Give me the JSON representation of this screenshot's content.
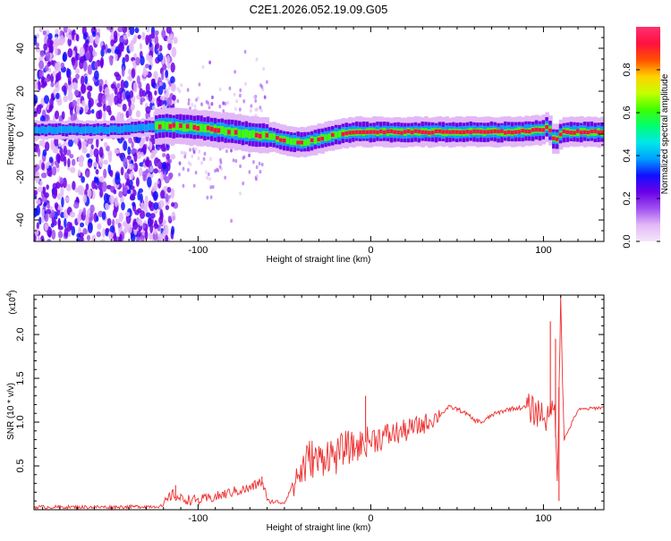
{
  "title": "C2E1.2026.052.19.09.G05",
  "chart_data": [
    {
      "type": "heatmap",
      "xlabel": "Height of straight line (km)",
      "ylabel": "Frequency (Hz)",
      "xlim": [
        -195,
        135
      ],
      "ylim": [
        -50,
        50
      ],
      "xticks": [
        -100,
        0,
        100
      ],
      "xtick_labels": [
        "-100",
        "0",
        "100"
      ],
      "yticks": [
        -40,
        -20,
        0,
        20,
        40
      ],
      "ytick_labels": [
        "-40",
        "-20",
        "0",
        "20",
        "40"
      ],
      "ridge": {
        "x": [
          -195,
          -150,
          -120,
          -100,
          -80,
          -60,
          -50,
          -40,
          -30,
          -20,
          -10,
          0,
          20,
          40,
          60,
          80,
          100,
          102,
          104,
          106,
          110,
          120,
          135
        ],
        "y": [
          2,
          2,
          4,
          3,
          1,
          -1,
          -3,
          -4,
          -2,
          0,
          1,
          1,
          1,
          1,
          1,
          1,
          2,
          5,
          -1,
          -3,
          1,
          1,
          1
        ]
      },
      "noise_band_edge_km": -125,
      "colorbar": {
        "label": "Normalized spectral amplitude",
        "range": [
          0,
          1
        ],
        "ticks": [
          0.0,
          0.2,
          0.4,
          0.6,
          0.8
        ],
        "tick_labels": [
          "0.0",
          "0.2",
          "0.4",
          "0.6",
          "0.8"
        ],
        "colors": [
          "#f4e6fa",
          "#e2b8f6",
          "#a050f0",
          "#6a00e8",
          "#1010ff",
          "#00a0ff",
          "#00e8e8",
          "#00ff70",
          "#40ff00",
          "#c8ff00",
          "#ffd000",
          "#ff5000",
          "#ff1040",
          "#ff3070"
        ]
      }
    },
    {
      "type": "line",
      "xlabel": "Height of straight line (km)",
      "ylabel": "SNR (10 * v/v)",
      "y_multiplier": "(x10",
      "y_multiplier_exp": "4",
      "y_multiplier_close": ")",
      "xlim": [
        -195,
        135
      ],
      "ylim": [
        0,
        2.45
      ],
      "xticks": [
        -100,
        0,
        100
      ],
      "xtick_labels": [
        "-100",
        "0",
        "100"
      ],
      "yticks": [
        0.5,
        1.0,
        1.5,
        2.0
      ],
      "ytick_labels": [
        "0.5",
        "1.0",
        "1.5",
        "2.0"
      ],
      "color": "#ee3030",
      "x": [
        -195,
        -150,
        -120,
        -115,
        -110,
        -100,
        -90,
        -80,
        -70,
        -63,
        -60,
        -50,
        -45,
        -40,
        -35,
        -30,
        -25,
        -20,
        -15,
        -10,
        -5,
        0,
        10,
        20,
        30,
        40,
        45,
        50,
        55,
        60,
        65,
        70,
        80,
        90,
        95,
        100,
        103,
        106,
        108,
        110,
        112,
        120,
        135
      ],
      "y": [
        0.03,
        0.03,
        0.04,
        0.15,
        0.1,
        0.08,
        0.12,
        0.18,
        0.22,
        0.3,
        0.1,
        0.08,
        0.3,
        0.45,
        0.6,
        0.55,
        0.65,
        0.6,
        0.72,
        0.7,
        0.75,
        0.8,
        0.85,
        0.9,
        0.97,
        1.08,
        1.17,
        1.15,
        1.1,
        1.02,
        1.0,
        1.08,
        1.15,
        1.17,
        1.12,
        1.1,
        1.0,
        1.3,
        0.35,
        2.45,
        0.8,
        1.14,
        1.17
      ],
      "spikes": [
        {
          "x": -113,
          "y": 0.28
        },
        {
          "x": -63,
          "y": 0.38
        },
        {
          "x": -3,
          "y": 1.3
        },
        {
          "x": 104,
          "y": 2.15
        },
        {
          "x": 107,
          "y": 1.95
        },
        {
          "x": 109,
          "y": 0.1
        },
        {
          "x": 110,
          "y": 2.45
        }
      ]
    }
  ]
}
